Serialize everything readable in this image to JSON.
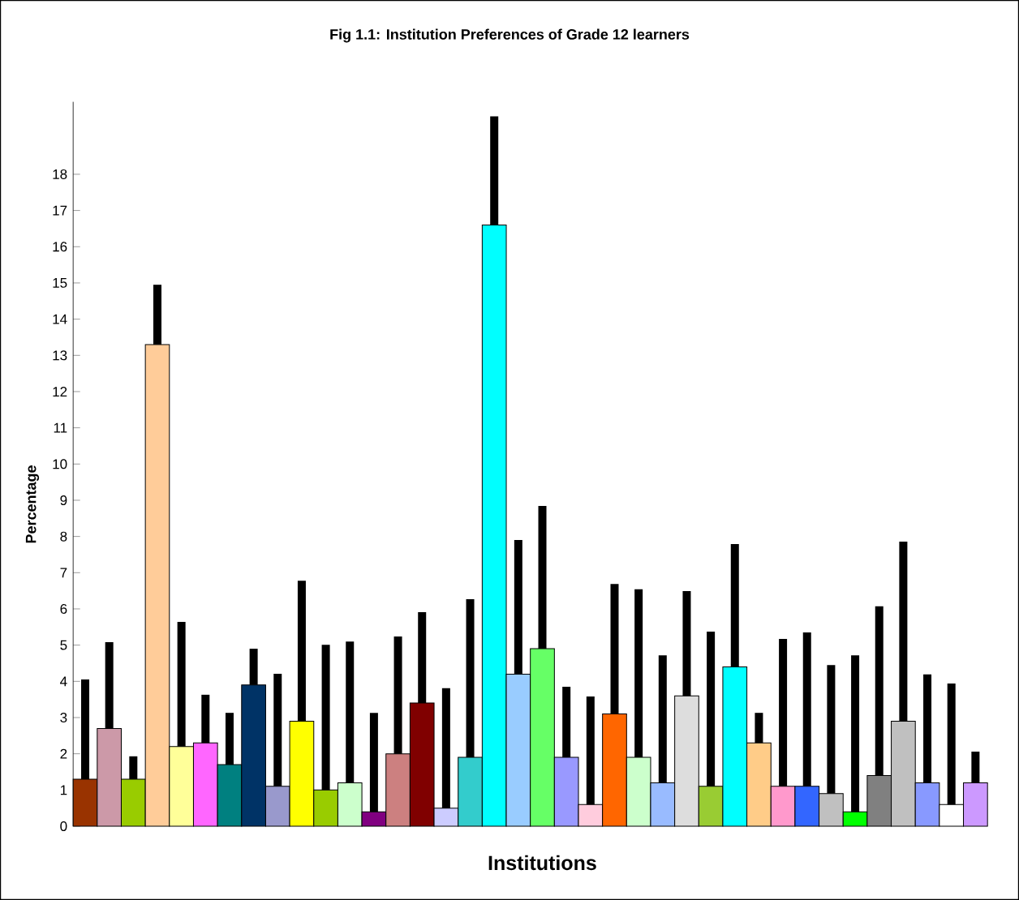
{
  "chart_data": {
    "type": "bar",
    "title": "Fig 1.1: Institution Preferences of Grade 12 learners",
    "xlabel": "Institutions",
    "ylabel": "Percentage",
    "categories": [
      null,
      null,
      null,
      null,
      null,
      null,
      null,
      null,
      null,
      null,
      null,
      null,
      null,
      null,
      null,
      null,
      null,
      null,
      null,
      null,
      null,
      null,
      null,
      null,
      null,
      null,
      null,
      null,
      null,
      null,
      null,
      null,
      null,
      null,
      null,
      null,
      null,
      null
    ],
    "values": [
      1.3,
      2.7,
      1.3,
      13.3,
      2.2,
      2.3,
      1.7,
      3.9,
      1.1,
      2.9,
      1.0,
      1.2,
      0.4,
      2.0,
      3.4,
      0.5,
      1.9,
      16.6,
      4.2,
      4.9,
      1.9,
      0.6,
      3.1,
      1.9,
      1.2,
      3.6,
      1.1,
      4.4,
      2.3,
      1.1,
      1.1,
      0.9,
      0.4,
      1.4,
      2.9,
      1.2,
      0.6,
      1.2
    ],
    "errors": [
      [
        1.3,
        4.05
      ],
      [
        2.7,
        5.08
      ],
      [
        1.3,
        1.93
      ],
      [
        13.3,
        14.95
      ],
      [
        2.2,
        5.64
      ],
      [
        2.3,
        3.63
      ],
      [
        1.7,
        3.13
      ],
      [
        3.9,
        4.9
      ],
      [
        1.1,
        4.21
      ],
      [
        2.9,
        6.78
      ],
      [
        1.0,
        5.01
      ],
      [
        1.2,
        5.1
      ],
      [
        0.4,
        3.13
      ],
      [
        2.0,
        5.24
      ],
      [
        3.4,
        5.91
      ],
      [
        0.5,
        3.81
      ],
      [
        1.9,
        6.27
      ],
      [
        16.6,
        19.6
      ],
      [
        4.2,
        7.9
      ],
      [
        4.9,
        8.84
      ],
      [
        1.9,
        3.85
      ],
      [
        0.6,
        3.58
      ],
      [
        3.1,
        6.69
      ],
      [
        1.9,
        6.54
      ],
      [
        1.2,
        4.72
      ],
      [
        3.6,
        6.49
      ],
      [
        1.1,
        5.37
      ],
      [
        4.4,
        7.79
      ],
      [
        2.3,
        3.13
      ],
      [
        1.1,
        5.17
      ],
      [
        1.1,
        5.35
      ],
      [
        0.9,
        4.45
      ],
      [
        0.4,
        4.72
      ],
      [
        1.4,
        6.07
      ],
      [
        2.9,
        7.86
      ],
      [
        1.2,
        4.19
      ],
      [
        0.6,
        3.94
      ],
      [
        1.2,
        2.06
      ]
    ],
    "colors": [
      "#993300",
      "#cc99a8",
      "#99cc00",
      "#ffcc99",
      "#ffff99",
      "#ff66ff",
      "#008080",
      "#003366",
      "#9999cc",
      "#ffff00",
      "#99cc00",
      "#ccffcc",
      "#800080",
      "#cc8080",
      "#800000",
      "#ccccff",
      "#33cccc",
      "#00ffff",
      "#99ccff",
      "#66ff66",
      "#9999ff",
      "#ffccdd",
      "#ff6600",
      "#ccffcc",
      "#99bbff",
      "#dddddd",
      "#99cc33",
      "#00ffff",
      "#ffcc88",
      "#ff99cc",
      "#3366ff",
      "#c0c0c0",
      "#00ff00",
      "#808080",
      "#c0c0c0",
      "#8899ff",
      "#ffffff",
      "#cc99ff"
    ],
    "ylim": [
      0,
      20
    ],
    "yticks": [
      0,
      1,
      2,
      3,
      4,
      5,
      6,
      7,
      8,
      9,
      10,
      11,
      12,
      13,
      14,
      15,
      16,
      17,
      18
    ],
    "grid": false,
    "tick_labels": "y"
  }
}
